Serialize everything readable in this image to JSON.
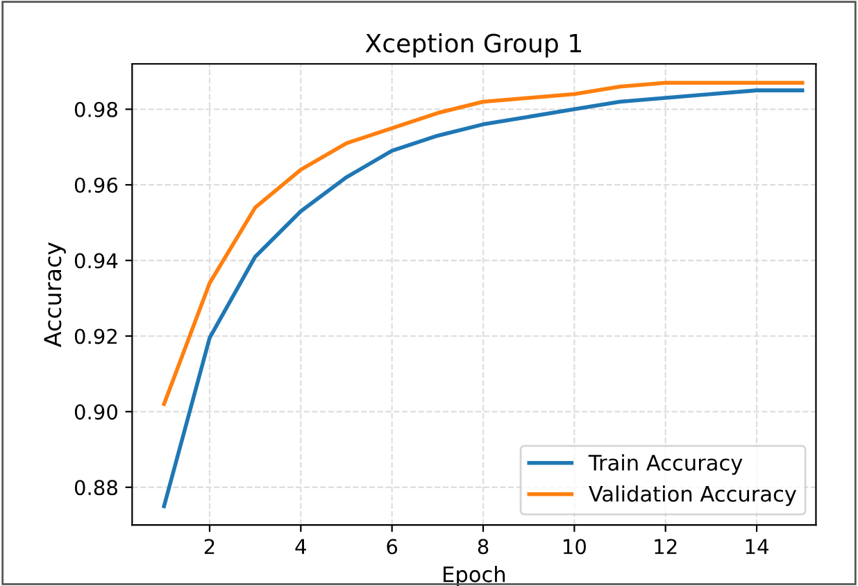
{
  "chart_data": {
    "type": "line",
    "title": "Xception Group 1",
    "xlabel": "Epoch",
    "ylabel": "Accuracy",
    "x": [
      1,
      2,
      3,
      4,
      5,
      6,
      7,
      8,
      9,
      10,
      11,
      12,
      13,
      14,
      15
    ],
    "series": [
      {
        "name": "Train Accuracy",
        "color": "#1f77b4",
        "values": [
          0.875,
          0.9195,
          0.941,
          0.953,
          0.962,
          0.969,
          0.973,
          0.976,
          0.978,
          0.98,
          0.982,
          0.983,
          0.984,
          0.985,
          0.985
        ]
      },
      {
        "name": "Validation Accuracy",
        "color": "#ff7f0e",
        "values": [
          0.902,
          0.934,
          0.954,
          0.964,
          0.971,
          0.975,
          0.979,
          0.982,
          0.983,
          0.984,
          0.986,
          0.987,
          0.987,
          0.987,
          0.987
        ]
      }
    ],
    "xlim": [
      0.3,
      15.3
    ],
    "ylim": [
      0.87,
      0.992
    ],
    "xticks": [
      2,
      4,
      6,
      8,
      10,
      12,
      14
    ],
    "yticks": [
      {
        "value": 0.88,
        "label": "0.88"
      },
      {
        "value": 0.9,
        "label": "0.90"
      },
      {
        "value": 0.92,
        "label": "0.92"
      },
      {
        "value": 0.94,
        "label": "0.94"
      },
      {
        "value": 0.96,
        "label": "0.96"
      },
      {
        "value": 0.98,
        "label": "0.98"
      }
    ],
    "grid": true,
    "legend": "bottom right",
    "marker": "none",
    "line_style": "solid"
  }
}
